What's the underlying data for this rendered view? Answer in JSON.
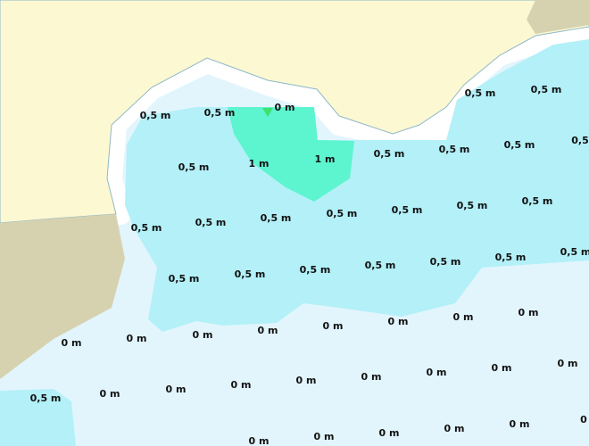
{
  "labels": [
    "0,5 m",
    "0,5 m",
    "0 m",
    "0,5 m",
    "0,5 m",
    "0,5 m",
    "0,5 m",
    "0,5 m",
    "0,5",
    "1 m",
    "1 m",
    "0,5 m",
    "0,5 m",
    "0,5 m",
    "0,5 m",
    "0,5 m",
    "0,5 m",
    "0,5 m",
    "0,5 m",
    "0,5 m",
    "0,5 m",
    "0,5 m",
    "0,5 m",
    "0,5 m",
    "0,5 m",
    "0,5 m",
    "0 m",
    "0 m",
    "0 m",
    "0 m",
    "0 m",
    "0 m",
    "0 m",
    "0 m",
    "0,5 m",
    "0 m",
    "0 m",
    "0 m",
    "0 m",
    "0 m",
    "0 m",
    "0 m",
    "0 m",
    "0 m",
    "0 m",
    "0 m",
    "0 m",
    "0 m",
    "0"
  ]
}
